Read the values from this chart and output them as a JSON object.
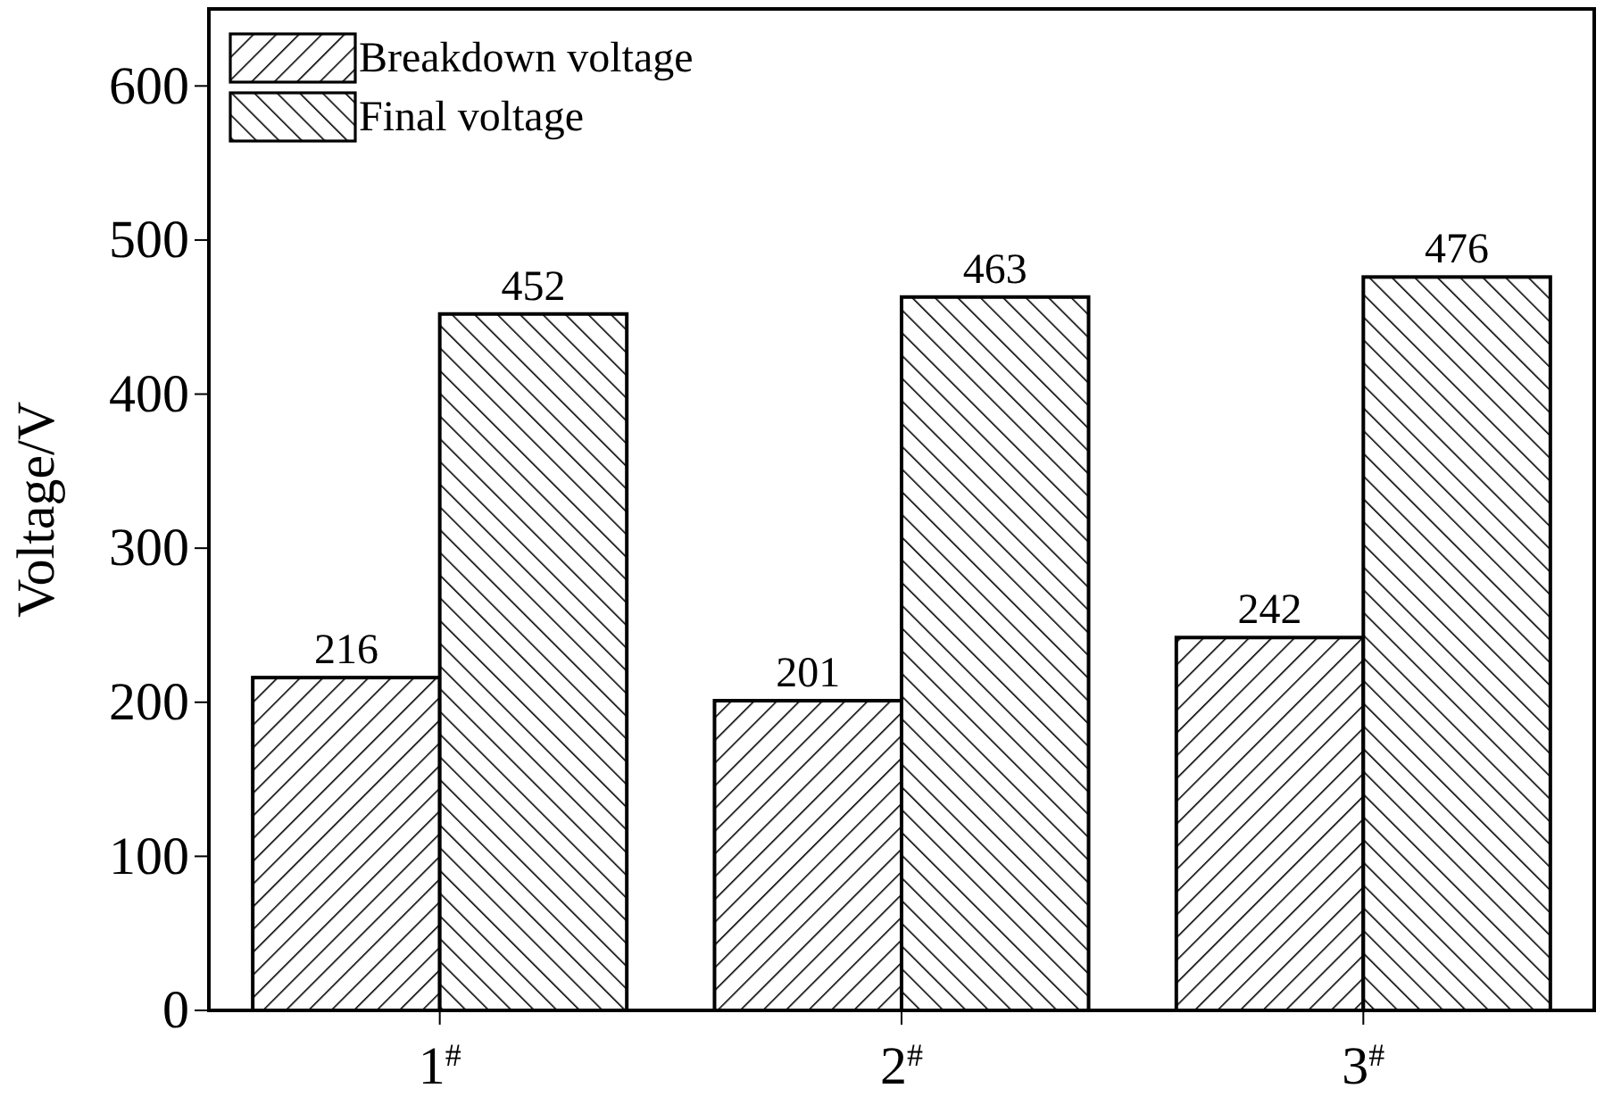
{
  "chart_data": {
    "type": "bar",
    "ylabel": "Voltage/V",
    "categories": [
      "1$^{#}$",
      "2$^{#}$",
      "3$^{#}$"
    ],
    "series": [
      {
        "name": "Breakdown voltage",
        "color": "#000000",
        "values": [
          216,
          201,
          242
        ]
      },
      {
        "name": "Final voltage",
        "color": "#000000",
        "values": [
          452,
          463,
          476
        ]
      }
    ],
    "ylim": [
      0,
      650
    ],
    "yticks": [
      0,
      100,
      200,
      300,
      400,
      500,
      600
    ],
    "data_labels": true,
    "legend": "top left",
    "grid": false
  }
}
